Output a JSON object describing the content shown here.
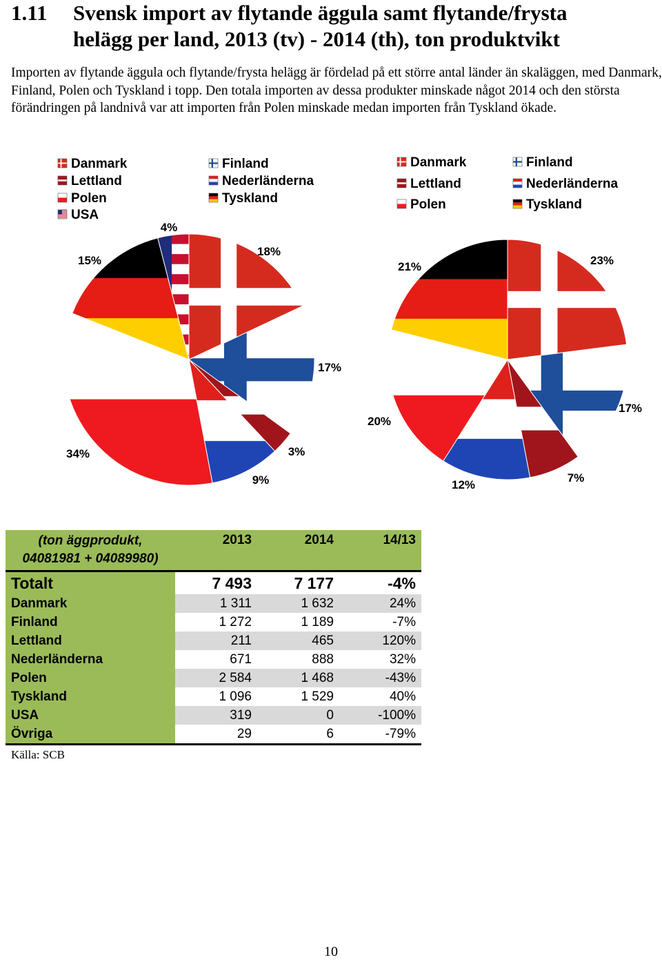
{
  "heading": {
    "number": "1.11",
    "line1": "Svensk import av flytande äggula samt flytande/frysta",
    "line2": "helägg per land, 2013 (tv) - 2014 (th), ton produktvikt"
  },
  "intro": "Importen av flytande äggula och flytande/frysta helägg är fördelad på ett större antal länder än skaläggen, med Danmark, Finland, Polen och Tyskland i topp. Den totala importen av dessa produkter minskade något 2014 och den största förändringen på landnivå var att importen från Polen minskade medan importen från Tyskland ökade.",
  "chart_data": [
    {
      "type": "pie",
      "title": "",
      "legend": [
        "Danmark",
        "Finland",
        "Lettland",
        "Nederländerna",
        "Polen",
        "Tyskland",
        "USA"
      ],
      "slices": [
        {
          "name": "Danmark",
          "value": 18,
          "label": "18%"
        },
        {
          "name": "Finland",
          "value": 17,
          "label": "17%"
        },
        {
          "name": "Lettland",
          "value": 3,
          "label": "3%"
        },
        {
          "name": "Nederländerna",
          "value": 9,
          "label": "9%"
        },
        {
          "name": "Polen",
          "value": 34,
          "label": "34%"
        },
        {
          "name": "Tyskland",
          "value": 15,
          "label": "15%"
        },
        {
          "name": "USA",
          "value": 4,
          "label": "4%"
        }
      ]
    },
    {
      "type": "pie",
      "title": "",
      "legend": [
        "Danmark",
        "Finland",
        "Lettland",
        "Nederländerna",
        "Polen",
        "Tyskland"
      ],
      "slices": [
        {
          "name": "Danmark",
          "value": 23,
          "label": "23%"
        },
        {
          "name": "Finland",
          "value": 17,
          "label": "17%"
        },
        {
          "name": "Lettland",
          "value": 7,
          "label": "7%"
        },
        {
          "name": "Nederländerna",
          "value": 12,
          "label": "12%"
        },
        {
          "name": "Polen",
          "value": 20,
          "label": "20%"
        },
        {
          "name": "Tyskland",
          "value": 21,
          "label": "21%"
        }
      ]
    }
  ],
  "table": {
    "header": {
      "label": "(ton äggprodukt, 04081981 + 04089980)",
      "c1": "2013",
      "c2": "2014",
      "c3": "14/13"
    },
    "total": {
      "label": "Totalt",
      "c1": "7 493",
      "c2": "7 177",
      "c3": "-4%"
    },
    "rows": [
      {
        "label": "Danmark",
        "c1": "1 311",
        "c2": "1 632",
        "c3": "24%"
      },
      {
        "label": "Finland",
        "c1": "1 272",
        "c2": "1 189",
        "c3": "-7%"
      },
      {
        "label": "Lettland",
        "c1": "211",
        "c2": "465",
        "c3": "120%"
      },
      {
        "label": "Nederländerna",
        "c1": "671",
        "c2": "888",
        "c3": "32%"
      },
      {
        "label": "Polen",
        "c1": "2 584",
        "c2": "1 468",
        "c3": "-43%"
      },
      {
        "label": "Tyskland",
        "c1": "1 096",
        "c2": "1 529",
        "c3": "40%"
      },
      {
        "label": "USA",
        "c1": "319",
        "c2": "0",
        "c3": "-100%"
      },
      {
        "label": "Övriga",
        "c1": "29",
        "c2": "6",
        "c3": "-79%"
      }
    ]
  },
  "source": "Källa: SCB",
  "page_number": "10"
}
